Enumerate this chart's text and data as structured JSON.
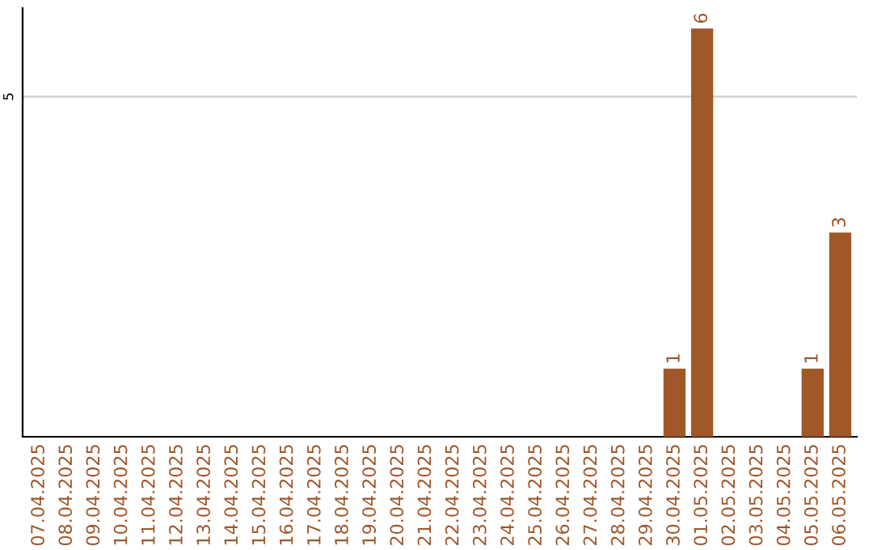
{
  "chart_data": {
    "type": "bar",
    "categories": [
      "07.04.2025",
      "08.04.2025",
      "09.04.2025",
      "10.04.2025",
      "11.04.2025",
      "12.04.2025",
      "13.04.2025",
      "14.04.2025",
      "15.04.2025",
      "16.04.2025",
      "17.04.2025",
      "18.04.2025",
      "19.04.2025",
      "20.04.2025",
      "21.04.2025",
      "22.04.2025",
      "23.04.2025",
      "24.04.2025",
      "25.04.2025",
      "26.04.2025",
      "27.04.2025",
      "28.04.2025",
      "29.04.2025",
      "30.04.2025",
      "01.05.2025",
      "02.05.2025",
      "03.05.2025",
      "04.05.2025",
      "05.05.2025",
      "06.05.2025"
    ],
    "values": [
      null,
      null,
      null,
      null,
      null,
      null,
      null,
      null,
      null,
      null,
      null,
      null,
      null,
      null,
      null,
      null,
      null,
      null,
      null,
      null,
      null,
      null,
      null,
      1,
      6,
      null,
      null,
      null,
      1,
      3
    ],
    "data_labels": true,
    "color": "#a0572a",
    "ylim": [
      0,
      6.3
    ],
    "yticks": [
      5
    ],
    "grid": "y"
  }
}
